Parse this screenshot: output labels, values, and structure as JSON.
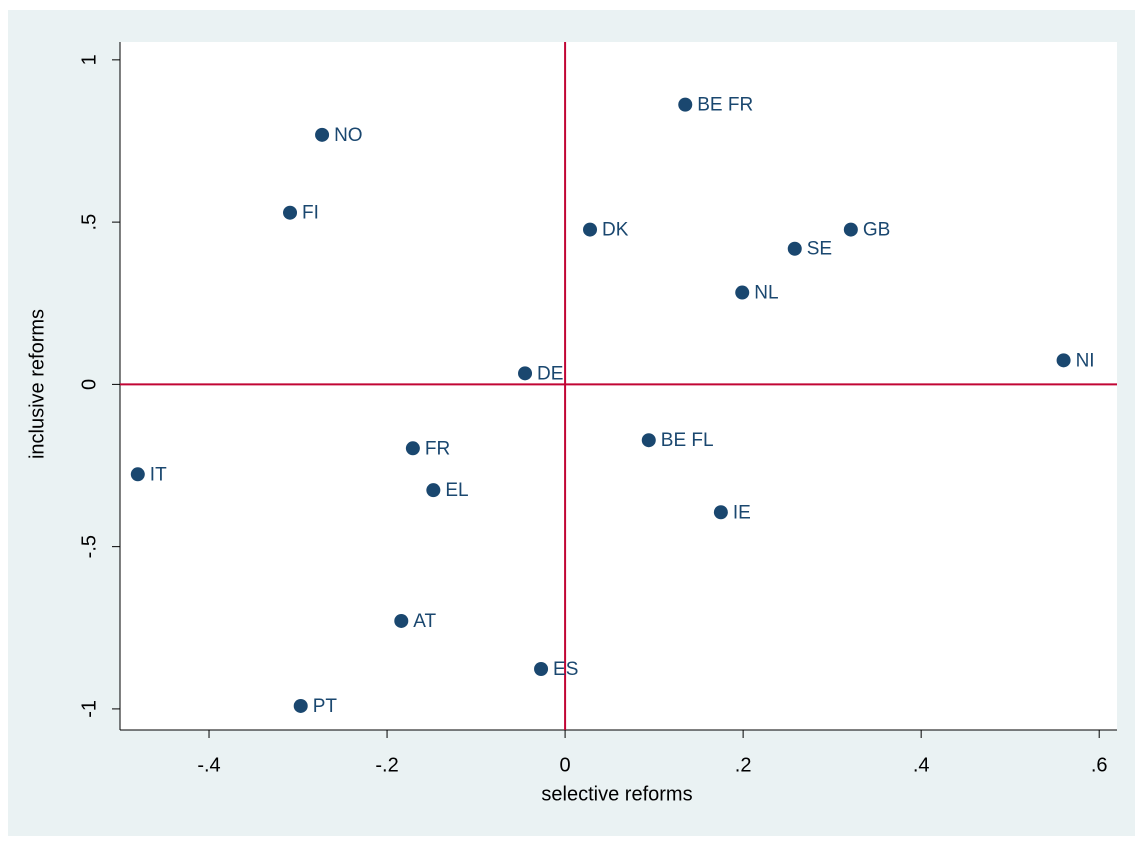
{
  "chart_data": {
    "type": "scatter",
    "x_label": "selective reforms",
    "y_label": "inclusive reforms",
    "labels": [
      "BE FR",
      "NO",
      "FI",
      "DK",
      "GB",
      "SE",
      "NL",
      "NI",
      "DE",
      "BE FL",
      "FR",
      "IT",
      "EL",
      "IE",
      "AT",
      "ES",
      "PT"
    ],
    "x": [
      0.135,
      -0.273,
      -0.309,
      0.028,
      0.321,
      0.258,
      0.199,
      0.56,
      -0.045,
      0.094,
      -0.171,
      -0.48,
      -0.148,
      0.175,
      -0.184,
      -0.027,
      -0.297
    ],
    "y": [
      0.862,
      0.769,
      0.529,
      0.477,
      0.477,
      0.418,
      0.283,
      0.074,
      0.034,
      -0.172,
      -0.197,
      -0.277,
      -0.326,
      -0.394,
      -0.729,
      -0.877,
      -0.991
    ],
    "color": "#1a476f",
    "reference_line_color": "#c10534",
    "xline": 0,
    "yline": 0,
    "xlim": [
      -0.5,
      0.62
    ],
    "ylim": [
      -1.065,
      1.055
    ],
    "xticks": [
      {
        "value": -0.4,
        "label": "-.4"
      },
      {
        "value": -0.2,
        "label": "-.2"
      },
      0,
      {
        "value": 0.2,
        "label": ".2"
      },
      {
        "value": 0.4,
        "label": ".4"
      },
      {
        "value": 0.6,
        "label": ".6"
      }
    ],
    "yticks": [
      -1,
      {
        "value": -0.5,
        "label": "-.5"
      },
      0,
      {
        "value": 0.5,
        "label": ".5"
      },
      1
    ],
    "grid": false
  }
}
